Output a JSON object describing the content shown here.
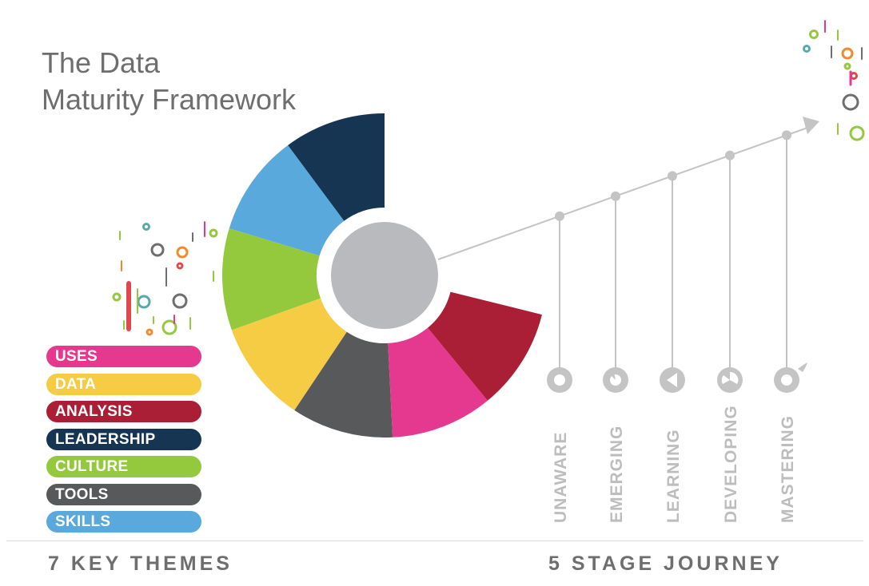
{
  "title": {
    "line1": "The Data",
    "line2": "Maturity Framework"
  },
  "themes": [
    {
      "label": "USES",
      "color": "#e4398f"
    },
    {
      "label": "DATA",
      "color": "#f5cc44"
    },
    {
      "label": "ANALYSIS",
      "color": "#ab1f36"
    },
    {
      "label": "LEADERSHIP",
      "color": "#153552"
    },
    {
      "label": "CULTURE",
      "color": "#95c93d"
    },
    {
      "label": "TOOLS",
      "color": "#58595b"
    },
    {
      "label": "SKILLS",
      "color": "#5aa9dd"
    }
  ],
  "stages": [
    "UNAWARE",
    "EMERGING",
    "LEARNING",
    "DEVELOPING",
    "MASTERING"
  ],
  "footer": {
    "left": "7 KEY THEMES",
    "right": "5 STAGE JOURNEY"
  },
  "colors": {
    "center": "#b9babd",
    "journey": "#c4c4c4",
    "text": "#6e6e70"
  }
}
